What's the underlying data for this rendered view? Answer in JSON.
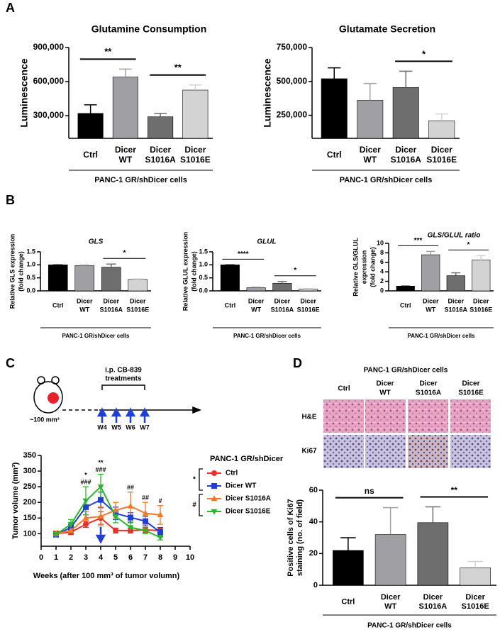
{
  "panel_labels": [
    "A",
    "B",
    "C",
    "D"
  ],
  "timeline": {
    "title": [
      "i.p. CB-839",
      "treatments"
    ],
    "weeks": [
      "W4",
      "W5",
      "W6",
      "W7"
    ],
    "start": "~100 mm³"
  },
  "histology": {
    "title": "PANC-1 GR/shDicer cells",
    "columns": [
      [
        "Ctrl"
      ],
      [
        "Dicer",
        "WT"
      ],
      [
        "Dicer",
        "S1016A"
      ],
      [
        "Dicer",
        "S1016E"
      ]
    ],
    "rows": [
      "H&E",
      "Ki67"
    ]
  },
  "chart_data": [
    {
      "type": "bar",
      "title": "Glutamine Consumption",
      "ylabel": [
        "Luminescence"
      ],
      "categories": [
        [
          "Ctrl"
        ],
        [
          "Dicer",
          "WT"
        ],
        [
          "Dicer",
          "S1016A"
        ],
        [
          "Dicer",
          "S1016E"
        ]
      ],
      "values": [
        320000,
        640000,
        290000,
        525000
      ],
      "errors": [
        75000,
        70000,
        30000,
        45000
      ],
      "colors": [
        "#000000",
        "#a0a0a4",
        "#6e6e6e",
        "#d3d3d3"
      ],
      "ylim": [
        100000,
        900000
      ],
      "yticks": [
        {
          "value": 300000,
          "label": "300,000"
        },
        {
          "value": 600000,
          "label": "600,000"
        },
        {
          "value": 900000,
          "label": "900,000"
        }
      ],
      "group_label": "PANC-1 GR/shDicer cells",
      "annotations": [
        {
          "text": "**",
          "pair": [
            0,
            1
          ]
        },
        {
          "text": "**",
          "pair": [
            2,
            3
          ]
        }
      ]
    },
    {
      "type": "bar",
      "title": "Glutamate Secretion",
      "ylabel": [
        "Luminescence"
      ],
      "categories": [
        [
          "Ctrl"
        ],
        [
          "Dicer",
          "WT"
        ],
        [
          "Dicer",
          "S1016A"
        ],
        [
          "Dicer",
          "S1016E"
        ]
      ],
      "values": [
        520000,
        360000,
        455000,
        210000
      ],
      "errors": [
        80000,
        125000,
        120000,
        50000
      ],
      "colors": [
        "#000000",
        "#a0a0a4",
        "#6e6e6e",
        "#d3d3d3"
      ],
      "ylim": [
        80000,
        750000
      ],
      "yticks": [
        {
          "value": 250000,
          "label": "250,000"
        },
        {
          "value": 500000,
          "label": "500,000"
        },
        {
          "value": 750000,
          "label": "750,000"
        }
      ],
      "group_label": "PANC-1 GR/shDicer cells",
      "annotations": [
        {
          "text": "*",
          "pair": [
            2,
            3
          ]
        }
      ]
    },
    {
      "type": "bar",
      "title": "GLS",
      "ylabel": [
        "Relative GLS expression",
        "(fold change)"
      ],
      "categories": [
        [
          "Ctrl"
        ],
        [
          "Dicer",
          "WT"
        ],
        [
          "Dicer",
          "S1016A"
        ],
        [
          "Dicer",
          "S1016E"
        ]
      ],
      "values": [
        1.0,
        0.97,
        0.91,
        0.44
      ],
      "errors": [
        0,
        0.02,
        0.12,
        0.02
      ],
      "colors": [
        "#000000",
        "#a0a0a4",
        "#6e6e6e",
        "#d3d3d3"
      ],
      "ylim": [
        0,
        1.5
      ],
      "yticks": [
        {
          "value": 0,
          "label": "0.0"
        },
        {
          "value": 0.5,
          "label": "0.5"
        },
        {
          "value": 1,
          "label": "1.0"
        },
        {
          "value": 1.5,
          "label": "1.5"
        }
      ],
      "group_label": "PANC-1 GR/shDicer cells",
      "annotations": [
        {
          "text": "*",
          "pair": [
            2,
            3
          ]
        }
      ]
    },
    {
      "type": "bar",
      "title": "GLUL",
      "ylabel": [
        "Relative GLUL expression",
        "(fold change)"
      ],
      "categories": [
        [
          "Ctrl"
        ],
        [
          "Dicer",
          "WT"
        ],
        [
          "Dicer",
          "S1016A"
        ],
        [
          "Dicer",
          "S1016E"
        ]
      ],
      "values": [
        1.0,
        0.12,
        0.29,
        0.07
      ],
      "errors": [
        0,
        0.02,
        0.07,
        0.02
      ],
      "colors": [
        "#000000",
        "#a0a0a4",
        "#6e6e6e",
        "#d3d3d3"
      ],
      "ylim": [
        0,
        1.5
      ],
      "yticks": [
        {
          "value": 0,
          "label": "0.0"
        },
        {
          "value": 0.5,
          "label": "0.5"
        },
        {
          "value": 1,
          "label": "1.0"
        },
        {
          "value": 1.5,
          "label": "1.5"
        }
      ],
      "group_label": "PANC-1 GR/shDicer cells",
      "annotations": [
        {
          "text": "****",
          "pair": [
            0,
            1
          ]
        },
        {
          "text": "*",
          "pair": [
            2,
            3
          ]
        }
      ]
    },
    {
      "type": "bar",
      "title": "GLS/GLUL ratio",
      "ylabel": [
        "Relative GLS/GLUL",
        "expression",
        "(fold change)"
      ],
      "categories": [
        [
          "Ctrl"
        ],
        [
          "Dicer",
          "WT"
        ],
        [
          "Dicer",
          "S1016A"
        ],
        [
          "Dicer",
          "S1016E"
        ]
      ],
      "values": [
        1.0,
        7.6,
        3.2,
        6.5
      ],
      "errors": [
        0,
        0.7,
        0.6,
        0.9
      ],
      "colors": [
        "#000000",
        "#a0a0a4",
        "#6e6e6e",
        "#d3d3d3"
      ],
      "ylim": [
        0,
        10
      ],
      "yticks": [
        0,
        2,
        4,
        6,
        8,
        10
      ],
      "group_label": "PANC-1 GR/shDicer cells",
      "annotations": [
        {
          "text": "***",
          "pair": [
            0,
            1
          ]
        },
        {
          "text": "*",
          "pair": [
            2,
            3
          ]
        }
      ]
    },
    {
      "type": "line",
      "xlabel": "Weeks (after 100 mm³ of tumor volumn)",
      "ylabel": [
        "Tumor volume (mm³)"
      ],
      "x": [
        1,
        2,
        3,
        4,
        5,
        6,
        7,
        8
      ],
      "xlim": [
        0,
        10
      ],
      "xticks": [
        0,
        1,
        2,
        3,
        4,
        5,
        6,
        7,
        8,
        9,
        10
      ],
      "ylim": [
        60,
        350
      ],
      "yticks": [
        100,
        150,
        200,
        250,
        300,
        350
      ],
      "legend_title": "PANC-1 GR/shDicer",
      "series": [
        {
          "name": "Ctrl",
          "color": "#e8312a",
          "marker": "circle",
          "values": [
            100,
            105,
            130,
            150,
            110,
            110,
            112,
            110
          ],
          "errors": [
            8,
            8,
            10,
            20,
            8,
            8,
            8,
            8
          ]
        },
        {
          "name": "Dicer WT",
          "color": "#1f3fd6",
          "marker": "square",
          "values": [
            97,
            120,
            185,
            208,
            165,
            152,
            140,
            105
          ],
          "errors": [
            5,
            10,
            25,
            25,
            20,
            15,
            15,
            15
          ]
        },
        {
          "name": "Dicer S1016A",
          "color": "#f07a28",
          "marker": "triangle-up",
          "values": [
            100,
            110,
            150,
            155,
            175,
            188,
            165,
            160
          ],
          "errors": [
            5,
            10,
            20,
            30,
            25,
            45,
            35,
            30
          ]
        },
        {
          "name": "Dicer S1016E",
          "color": "#2db52d",
          "marker": "triangle-down",
          "values": [
            98,
            130,
            205,
            250,
            155,
            120,
            110,
            88
          ],
          "errors": [
            5,
            15,
            45,
            40,
            20,
            15,
            10,
            8
          ]
        }
      ],
      "annotations": [
        {
          "x": 3,
          "labels": [
            "*",
            "###"
          ]
        },
        {
          "x": 4,
          "labels": [
            "**",
            "###"
          ]
        },
        {
          "x": 6,
          "labels": [
            "##"
          ]
        },
        {
          "x": 7,
          "labels": [
            "##"
          ]
        },
        {
          "x": 8,
          "labels": [
            "#"
          ]
        }
      ],
      "legend_brackets": [
        {
          "text": "*",
          "series": [
            0,
            1
          ]
        },
        {
          "text": "#",
          "series": [
            2,
            3
          ]
        }
      ]
    },
    {
      "type": "bar",
      "ylabel": [
        "Positive cells of Ki67",
        "staining (no. of field)"
      ],
      "categories": [
        [
          "Ctrl"
        ],
        [
          "Dicer",
          "WT"
        ],
        [
          "Dicer",
          "S1016A"
        ],
        [
          "Dicer",
          "S1016E"
        ]
      ],
      "values": [
        22,
        32,
        39.5,
        11
      ],
      "errors": [
        8,
        17,
        10,
        4
      ],
      "colors": [
        "#000000",
        "#a0a0a4",
        "#6e6e6e",
        "#d3d3d3"
      ],
      "ylim": [
        0,
        60
      ],
      "yticks": [
        0,
        20,
        40,
        60
      ],
      "group_label": "PANC-1 GR/shDicer cells",
      "annotations": [
        {
          "text": "ns",
          "pair": [
            0,
            1
          ]
        },
        {
          "text": "**",
          "pair": [
            2,
            3
          ]
        }
      ]
    }
  ]
}
